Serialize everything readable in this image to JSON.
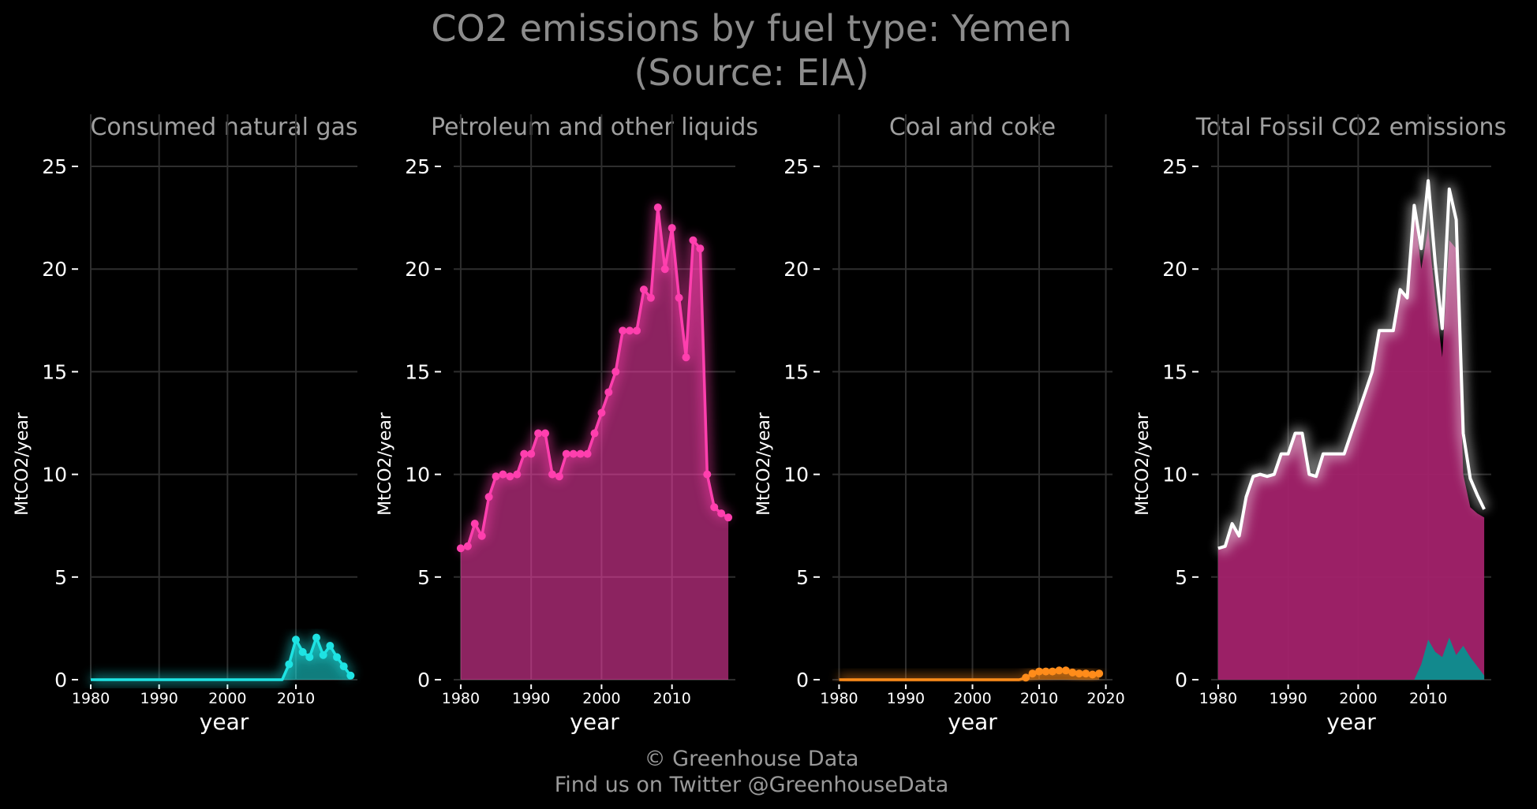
{
  "title": {
    "line1": "CO2 emissions by fuel type: Yemen",
    "line2": "(Source: EIA)"
  },
  "credits": {
    "line1": "© Greenhouse Data",
    "line2": "Find us on Twitter @GreenhouseData"
  },
  "colors": {
    "background": "#000000",
    "gas": "#1ee3e3",
    "petroleum": "#ff3fae",
    "coal": "#ff8c1a",
    "total_line": "#ffffff",
    "total_fill_petroleum": "#a3226b",
    "total_fill_gas": "#0b8f8f"
  },
  "chart_data": [
    {
      "type": "area",
      "title": "Consumed natural gas",
      "xlabel": "year",
      "ylabel": "MtCO2/year",
      "xlim": [
        1980,
        2019
      ],
      "ylim": [
        0,
        26
      ],
      "xticks": [
        "1980",
        "1990",
        "2000",
        "2010"
      ],
      "yticks": [
        "0",
        "5",
        "10",
        "15",
        "20",
        "25"
      ],
      "color_key": "gas",
      "markers": true,
      "series": [
        {
          "x": [
            1980,
            1981,
            1982,
            1983,
            1984,
            1985,
            1986,
            1987,
            1988,
            1989,
            1990,
            1991,
            1992,
            1993,
            1994,
            1995,
            1996,
            1997,
            1998,
            1999,
            2000,
            2001,
            2002,
            2003,
            2004,
            2005,
            2006,
            2007,
            2008,
            2009,
            2010,
            2011,
            2012,
            2013,
            2014,
            2015,
            2016,
            2017,
            2018
          ],
          "y": [
            0,
            0,
            0,
            0,
            0,
            0,
            0,
            0,
            0,
            0,
            0,
            0,
            0,
            0,
            0,
            0,
            0,
            0,
            0,
            0,
            0,
            0,
            0,
            0,
            0,
            0,
            0,
            0,
            0,
            0.75,
            1.95,
            1.35,
            1.1,
            2.05,
            1.2,
            1.65,
            1.1,
            0.65,
            0.2
          ]
        }
      ]
    },
    {
      "type": "area",
      "title": "Petroleum and other liquids",
      "xlabel": "year",
      "ylabel": "MtCO2/year",
      "xlim": [
        1979,
        2019
      ],
      "ylim": [
        0,
        26
      ],
      "xticks": [
        "1980",
        "1990",
        "2000",
        "2010"
      ],
      "yticks": [
        "0",
        "5",
        "10",
        "15",
        "20",
        "25"
      ],
      "color_key": "petroleum",
      "markers": true,
      "series": [
        {
          "x": [
            1980,
            1981,
            1982,
            1983,
            1984,
            1985,
            1986,
            1987,
            1988,
            1989,
            1990,
            1991,
            1992,
            1993,
            1994,
            1995,
            1996,
            1997,
            1998,
            1999,
            2000,
            2001,
            2002,
            2003,
            2004,
            2005,
            2006,
            2007,
            2008,
            2009,
            2010,
            2011,
            2012,
            2013,
            2014,
            2015,
            2016,
            2017,
            2018
          ],
          "y": [
            6.4,
            6.5,
            7.6,
            7.0,
            8.9,
            9.9,
            10.0,
            9.9,
            10.0,
            11.0,
            11.0,
            12.0,
            12.0,
            10.0,
            9.9,
            11.0,
            11.0,
            11.0,
            11.0,
            12.0,
            13.0,
            14.0,
            15.0,
            17.0,
            17.0,
            17.0,
            19.0,
            18.6,
            23.0,
            20.0,
            22.0,
            18.6,
            15.7,
            21.4,
            21.0,
            10.0,
            8.4,
            8.1,
            7.9
          ]
        }
      ]
    },
    {
      "type": "area",
      "title": "Coal and coke",
      "xlabel": "year",
      "ylabel": "MtCO2/year",
      "xlim": [
        1979,
        2021
      ],
      "ylim": [
        0,
        26
      ],
      "xticks": [
        "1980",
        "1990",
        "2000",
        "2010",
        "2020"
      ],
      "yticks": [
        "0",
        "5",
        "10",
        "15",
        "20",
        "25"
      ],
      "color_key": "coal",
      "markers": true,
      "series": [
        {
          "x": [
            1980,
            1981,
            1982,
            1983,
            1984,
            1985,
            1986,
            1987,
            1988,
            1989,
            1990,
            1991,
            1992,
            1993,
            1994,
            1995,
            1996,
            1997,
            1998,
            1999,
            2000,
            2001,
            2002,
            2003,
            2004,
            2005,
            2006,
            2007,
            2008,
            2009,
            2010,
            2011,
            2012,
            2013,
            2014,
            2015,
            2016,
            2017,
            2018,
            2019
          ],
          "y": [
            0,
            0,
            0,
            0,
            0,
            0,
            0,
            0,
            0,
            0,
            0,
            0,
            0,
            0,
            0,
            0,
            0,
            0,
            0,
            0,
            0,
            0,
            0,
            0,
            0,
            0,
            0,
            0,
            0.1,
            0.3,
            0.4,
            0.4,
            0.4,
            0.45,
            0.45,
            0.35,
            0.3,
            0.3,
            0.25,
            0.3
          ]
        }
      ]
    },
    {
      "type": "area",
      "title": "Total Fossil CO2 emissions",
      "xlabel": "year",
      "ylabel": "MtCO2/year",
      "xlim": [
        1979,
        2019
      ],
      "ylim": [
        0,
        26
      ],
      "xticks": [
        "1980",
        "1990",
        "2000",
        "2010"
      ],
      "yticks": [
        "0",
        "5",
        "10",
        "15",
        "20",
        "25"
      ],
      "color_key": "total_line",
      "markers": false,
      "stacked_areas": [
        {
          "color_key": "total_fill_petroleum",
          "source": "Petroleum and other liquids"
        },
        {
          "color_key": "total_fill_gas",
          "source": "Consumed natural gas"
        }
      ],
      "series": [
        {
          "x": [
            1980,
            1981,
            1982,
            1983,
            1984,
            1985,
            1986,
            1987,
            1988,
            1989,
            1990,
            1991,
            1992,
            1993,
            1994,
            1995,
            1996,
            1997,
            1998,
            1999,
            2000,
            2001,
            2002,
            2003,
            2004,
            2005,
            2006,
            2007,
            2008,
            2009,
            2010,
            2011,
            2012,
            2013,
            2014,
            2015,
            2016,
            2017,
            2018
          ],
          "y": [
            6.4,
            6.5,
            7.6,
            7.0,
            8.9,
            9.9,
            10.0,
            9.9,
            10.0,
            11.0,
            11.0,
            12.0,
            12.0,
            10.0,
            9.9,
            11.0,
            11.0,
            11.0,
            11.0,
            12.0,
            13.0,
            14.0,
            15.0,
            17.0,
            17.0,
            17.0,
            19.0,
            18.6,
            23.1,
            21.0,
            24.3,
            20.3,
            17.1,
            23.9,
            22.4,
            12.0,
            9.8,
            9.0,
            8.3
          ]
        }
      ]
    }
  ]
}
